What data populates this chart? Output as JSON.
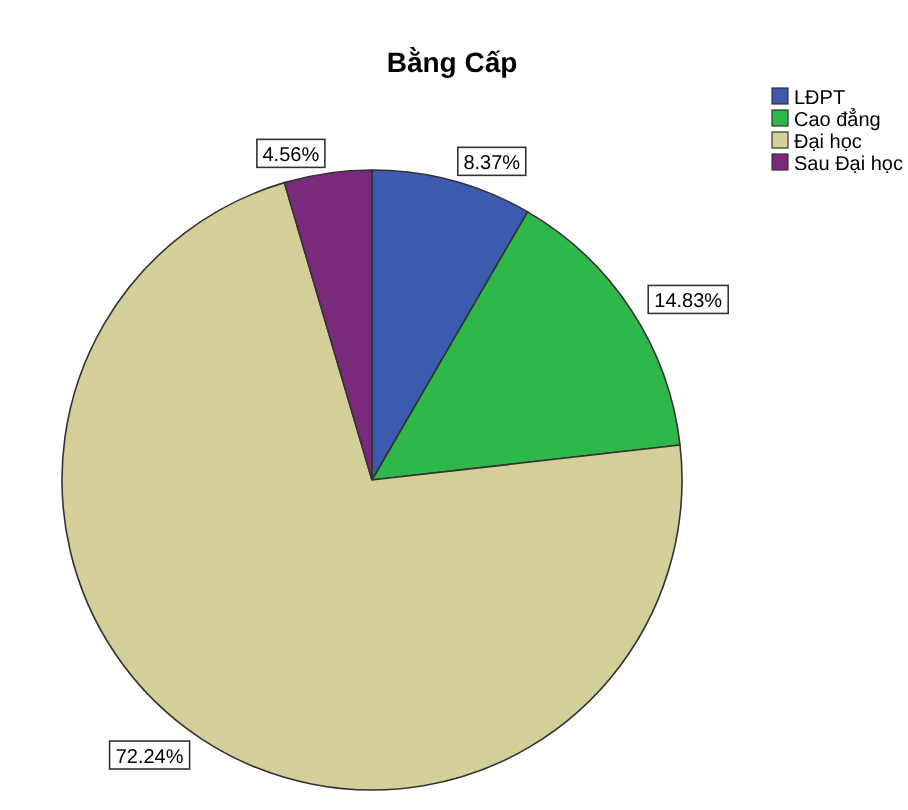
{
  "chart_data": {
    "type": "pie",
    "title": "Bằng Cấp",
    "categories": [
      "LĐPT",
      "Cao đẳng",
      "Đại học",
      "Sau Đại học"
    ],
    "values": [
      8.37,
      14.83,
      72.24,
      4.56
    ],
    "colors": [
      "#3b5bb0",
      "#2eb84a",
      "#d4cf98",
      "#7a2a7c"
    ],
    "value_labels": [
      "8.37%",
      "14.83%",
      "72.24%",
      "4.56%"
    ],
    "legend": "top right"
  }
}
